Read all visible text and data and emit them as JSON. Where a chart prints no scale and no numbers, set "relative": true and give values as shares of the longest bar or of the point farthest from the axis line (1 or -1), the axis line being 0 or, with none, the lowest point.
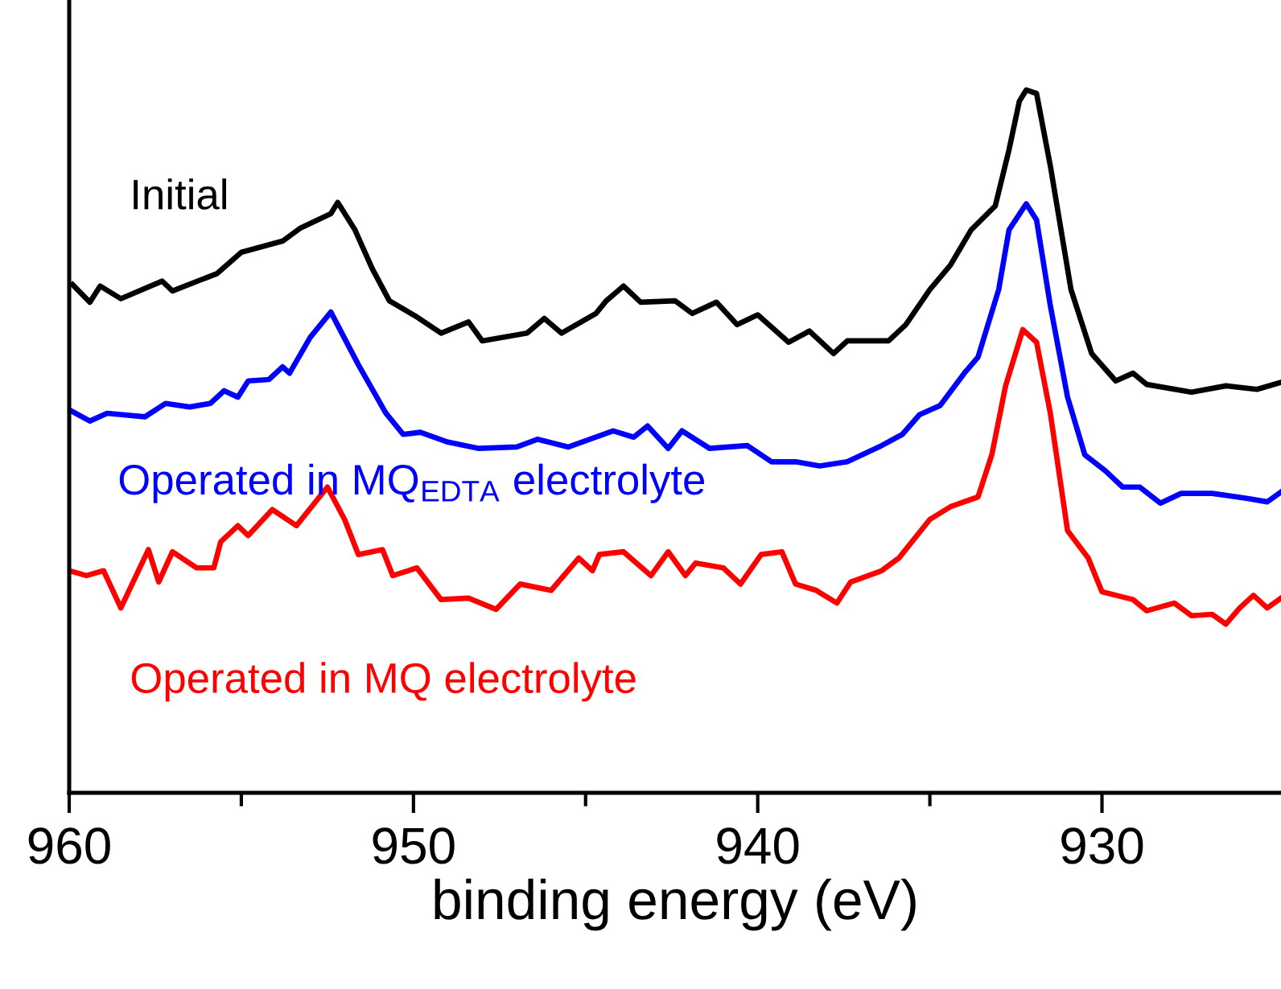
{
  "chart_data": {
    "type": "line",
    "xlabel": "binding energy (eV)",
    "relative": true,
    "xlim": [
      960,
      924.8
    ],
    "xticks": [
      960,
      {
        "value": 955,
        "label": null
      },
      950,
      {
        "value": 945,
        "label": null
      },
      940,
      {
        "value": 935,
        "label": null
      },
      930
    ],
    "tick_labels": "x",
    "grid": false,
    "legend": false,
    "marker": "none",
    "line_style": "solid",
    "series": [
      {
        "name": "Initial",
        "color": "#000000",
        "x": [
          959.9,
          959.4,
          959.1,
          958.5,
          957.3,
          957.0,
          955.7,
          955.0,
          953.8,
          953.3,
          952.4,
          952.2,
          951.7,
          951.2,
          950.7,
          949.9,
          949.2,
          948.4,
          948.0,
          946.7,
          946.2,
          945.7,
          944.7,
          944.4,
          943.9,
          943.4,
          942.4,
          941.9,
          941.2,
          940.6,
          940.0,
          939.1,
          938.5,
          937.8,
          937.4,
          936.2,
          935.7,
          935.0,
          934.4,
          933.8,
          933.1,
          932.7,
          932.4,
          932.2,
          931.9,
          931.5,
          930.9,
          930.3,
          929.6,
          929.1,
          928.7,
          927.4,
          926.4,
          925.5,
          924.8
        ],
        "values": [
          0.723,
          0.698,
          0.721,
          0.703,
          0.728,
          0.714,
          0.739,
          0.769,
          0.785,
          0.803,
          0.824,
          0.84,
          0.801,
          0.746,
          0.7,
          0.677,
          0.654,
          0.67,
          0.643,
          0.654,
          0.675,
          0.654,
          0.682,
          0.7,
          0.721,
          0.698,
          0.7,
          0.682,
          0.698,
          0.666,
          0.68,
          0.641,
          0.657,
          0.625,
          0.643,
          0.643,
          0.666,
          0.716,
          0.751,
          0.801,
          0.835,
          0.915,
          0.984,
          1.0,
          0.995,
          0.892,
          0.716,
          0.625,
          0.586,
          0.597,
          0.581,
          0.57,
          0.579,
          0.574,
          0.584
        ]
      },
      {
        "name": "Operated in MQ$_{EDTA}$ electrolyte",
        "color": "#0000ff",
        "x": [
          960.0,
          959.4,
          958.9,
          957.8,
          957.2,
          956.5,
          955.9,
          955.5,
          955.1,
          954.8,
          954.2,
          953.8,
          953.6,
          953.0,
          952.4,
          951.6,
          950.8,
          950.3,
          949.8,
          949.0,
          948.1,
          947.0,
          946.4,
          945.5,
          944.2,
          943.6,
          943.2,
          942.6,
          942.2,
          941.4,
          940.3,
          939.6,
          938.9,
          938.2,
          937.4,
          936.4,
          935.8,
          935.3,
          934.7,
          934.0,
          933.6,
          933.0,
          932.7,
          932.2,
          931.9,
          931.5,
          931.0,
          930.5,
          929.9,
          929.4,
          928.9,
          928.3,
          927.7,
          926.8,
          925.8,
          925.2,
          924.8
        ],
        "values": [
          0.545,
          0.529,
          0.54,
          0.535,
          0.554,
          0.549,
          0.554,
          0.572,
          0.563,
          0.586,
          0.588,
          0.606,
          0.597,
          0.648,
          0.684,
          0.609,
          0.54,
          0.51,
          0.513,
          0.499,
          0.49,
          0.492,
          0.503,
          0.492,
          0.515,
          0.506,
          0.522,
          0.49,
          0.515,
          0.49,
          0.494,
          0.471,
          0.471,
          0.465,
          0.471,
          0.494,
          0.51,
          0.538,
          0.551,
          0.597,
          0.62,
          0.716,
          0.801,
          0.838,
          0.815,
          0.693,
          0.563,
          0.481,
          0.458,
          0.435,
          0.435,
          0.412,
          0.426,
          0.426,
          0.419,
          0.414,
          0.428
        ]
      },
      {
        "name": "Operated in MQ electrolyte",
        "color": "#ff0000",
        "x": [
          960.0,
          959.5,
          959.0,
          958.5,
          957.7,
          957.4,
          957.0,
          956.3,
          955.8,
          955.6,
          955.1,
          954.8,
          954.1,
          953.4,
          952.5,
          952.0,
          951.6,
          950.9,
          950.6,
          949.9,
          949.2,
          948.4,
          947.6,
          946.9,
          946.0,
          945.2,
          944.8,
          944.6,
          943.9,
          943.1,
          942.6,
          942.1,
          941.8,
          941.0,
          940.5,
          939.9,
          939.3,
          938.9,
          938.3,
          937.7,
          937.3,
          936.4,
          935.9,
          935.0,
          934.4,
          933.6,
          933.2,
          932.8,
          932.3,
          931.9,
          931.5,
          931.0,
          930.4,
          930.0,
          929.1,
          928.7,
          927.9,
          927.4,
          926.8,
          926.4,
          926.0,
          925.6,
          925.2,
          924.8
        ],
        "values": [
          0.316,
          0.309,
          0.316,
          0.263,
          0.346,
          0.3,
          0.343,
          0.32,
          0.32,
          0.357,
          0.38,
          0.366,
          0.403,
          0.38,
          0.435,
          0.389,
          0.339,
          0.346,
          0.309,
          0.32,
          0.275,
          0.277,
          0.261,
          0.297,
          0.288,
          0.334,
          0.316,
          0.339,
          0.343,
          0.309,
          0.343,
          0.309,
          0.327,
          0.32,
          0.297,
          0.339,
          0.343,
          0.297,
          0.288,
          0.27,
          0.3,
          0.316,
          0.334,
          0.389,
          0.407,
          0.421,
          0.481,
          0.579,
          0.659,
          0.641,
          0.54,
          0.373,
          0.334,
          0.286,
          0.275,
          0.259,
          0.27,
          0.252,
          0.254,
          0.24,
          0.263,
          0.281,
          0.263,
          0.277
        ]
      }
    ]
  }
}
